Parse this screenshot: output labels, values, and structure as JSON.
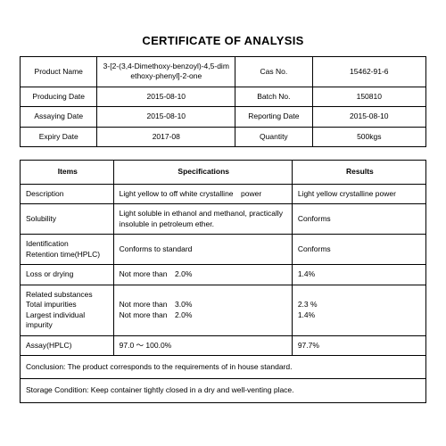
{
  "title": "CERTIFICATE OF ANALYSIS",
  "header": {
    "rows": [
      {
        "l1": "Product Name",
        "v1": "3-[2-(3,4-Dimethoxy-benzoyl)-4,5-dim ethoxy-phenyl]-2-one",
        "l2": "Cas No.",
        "v2": "15462-91-6"
      },
      {
        "l1": "Producing Date",
        "v1": "2015-08-10",
        "l2": "Batch No.",
        "v2": "150810"
      },
      {
        "l1": "Assaying Date",
        "v1": "2015-08-10",
        "l2": "Reporting Date",
        "v2": "2015-08-10"
      },
      {
        "l1": "Expiry Date",
        "v1": "2017-08",
        "l2": "Quantity",
        "v2": "500kgs"
      }
    ]
  },
  "analysis": {
    "columns": {
      "c1": "Items",
      "c2": "Specifications",
      "c3": "Results"
    },
    "rows": [
      {
        "item": "Description",
        "spec": "Light yellow to off white crystalline power",
        "res": "Light yellow crystalline power"
      },
      {
        "item": "Solubility",
        "spec": "Light soluble in ethanol and methanol, practically insoluble in petroleum ether.",
        "res": "Conforms"
      },
      {
        "item": "Identification\nRetention time(HPLC)",
        "spec": "Conforms to standard",
        "res": "Conforms"
      },
      {
        "item": "Loss or drying",
        "spec": "Not more than 2.0%",
        "res": "1.4%"
      },
      {
        "item": "Related substances\nTotal impurities\nLargest individual impurity",
        "spec": "Not more than 3.0%\nNot more than 2.0%",
        "res": "2.3 %\n1.4%"
      },
      {
        "item": "Assay(HPLC)",
        "spec": "97.0 ～ 100.0%",
        "res": "97.7%"
      }
    ],
    "conclusion": "Conclusion: The product corresponds to the requirements of in house standard.",
    "storage": "Storage Condition: Keep container tightly closed in a dry and well-venting place."
  }
}
